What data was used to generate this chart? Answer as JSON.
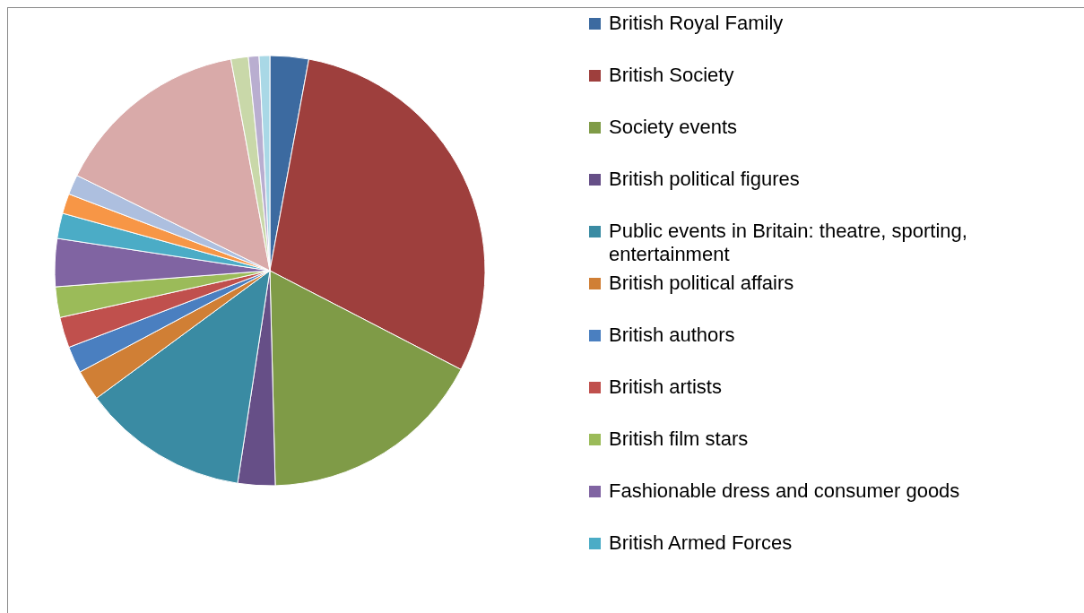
{
  "chart_data": {
    "type": "pie",
    "legend": "right",
    "categories": [
      "British Royal Family",
      "British Society",
      "Society events",
      "British political figures",
      "Public events in Britain: theatre, sporting, entertainment",
      "British political affairs",
      "British authors",
      "British artists",
      "British film stars",
      "Fashionable dress and consumer goods",
      "British Armed Forces",
      null,
      null,
      null,
      null,
      null,
      null
    ],
    "values": [
      2.9,
      29.7,
      17,
      2.8,
      12.5,
      2.3,
      2,
      2.3,
      2.3,
      3.6,
      1.9,
      1.5,
      1.5,
      14.8,
      1.3,
      0.8,
      0.8
    ],
    "colors": [
      "#3c6aa0",
      "#9e3f3d",
      "#7f9b47",
      "#664f87",
      "#3a8ba3",
      "#d07f35",
      "#4a7fc0",
      "#c0504d",
      "#9bbb59",
      "#8064a2",
      "#4bacc6",
      "#f79646",
      "#adbfdf",
      "#d9aaa9",
      "#c9d8a9",
      "#b9aed0",
      "#a9d8e6"
    ]
  }
}
